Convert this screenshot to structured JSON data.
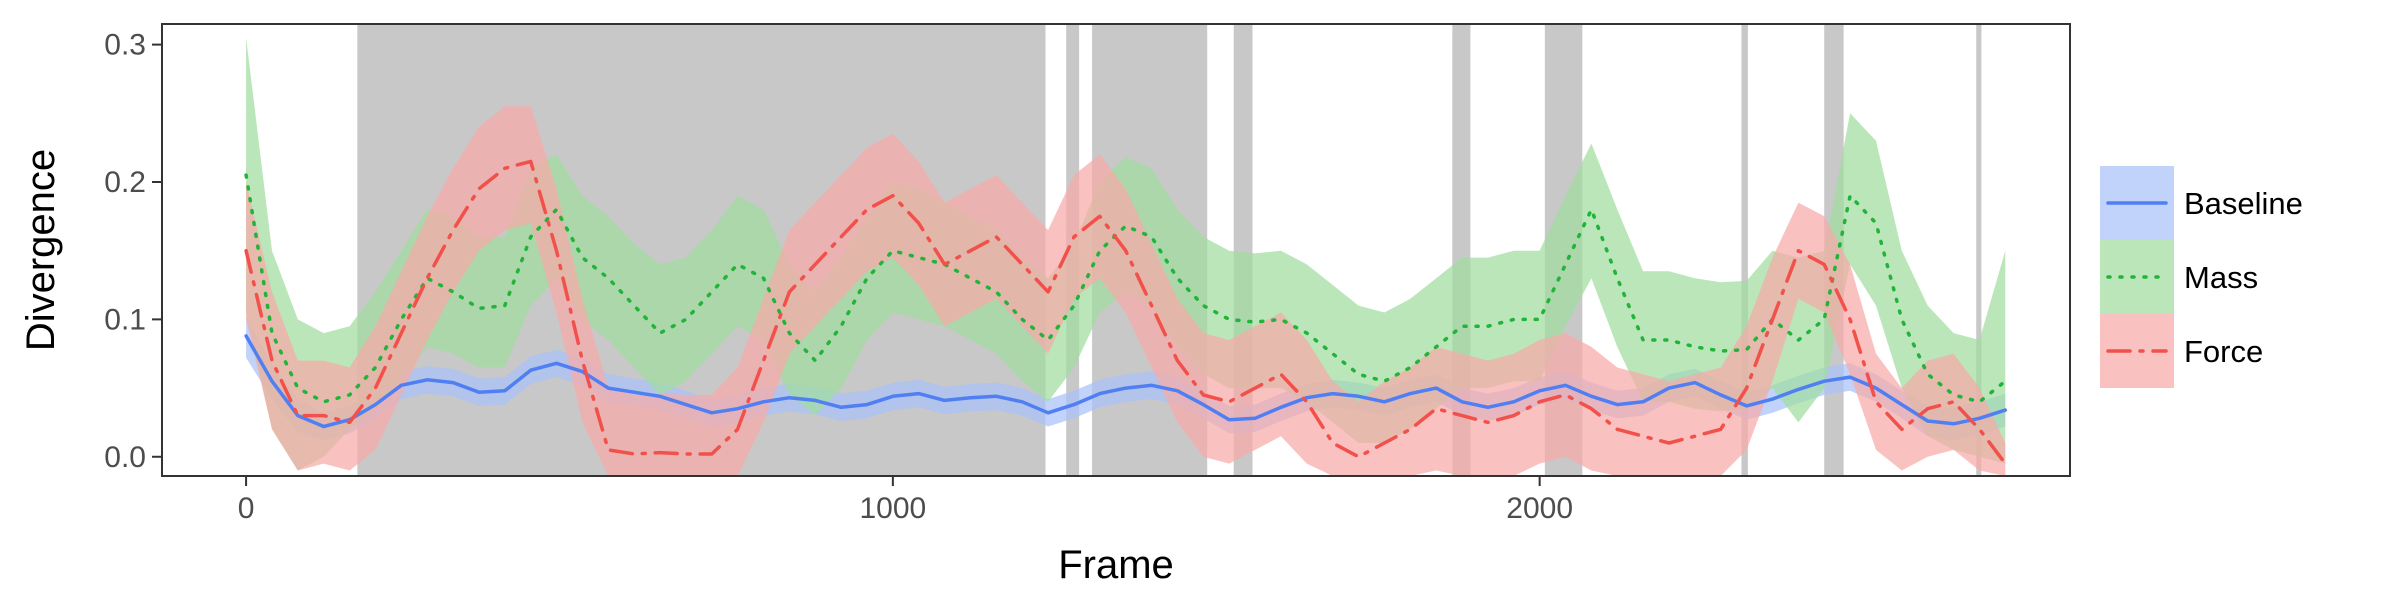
{
  "chart_data": {
    "type": "line",
    "xlabel": "Frame",
    "ylabel": "Divergence",
    "xlim": [
      -130,
      2820
    ],
    "ylim": [
      -0.014,
      0.315
    ],
    "x_ticks": [
      0,
      1000,
      2000
    ],
    "x_tick_labels": [
      "0",
      "1000",
      "2000"
    ],
    "y_ticks": [
      0.0,
      0.1,
      0.2,
      0.3
    ],
    "y_tick_labels": [
      "0.0",
      "0.1",
      "0.2",
      "0.3"
    ],
    "grid": false,
    "legend_position": "right",
    "shaded_regions": [
      [
        172,
        1236
      ],
      [
        1268,
        1288
      ],
      [
        1308,
        1486
      ],
      [
        1527,
        1556
      ],
      [
        1865,
        1893
      ],
      [
        2008,
        2066
      ],
      [
        2312,
        2322
      ],
      [
        2440,
        2470
      ],
      [
        2675,
        2683
      ]
    ],
    "series": [
      {
        "name": "Baseline",
        "color": "#4f7ff2",
        "fill": "#a9c2f8",
        "line_style": "solid",
        "x": [
          0,
          40,
          80,
          120,
          160,
          200,
          240,
          280,
          320,
          360,
          400,
          440,
          480,
          520,
          560,
          600,
          640,
          680,
          720,
          760,
          800,
          840,
          880,
          920,
          960,
          1000,
          1040,
          1080,
          1120,
          1160,
          1200,
          1240,
          1280,
          1320,
          1360,
          1400,
          1440,
          1480,
          1520,
          1560,
          1600,
          1640,
          1680,
          1720,
          1760,
          1800,
          1840,
          1880,
          1920,
          1960,
          2000,
          2040,
          2080,
          2120,
          2160,
          2200,
          2240,
          2280,
          2320,
          2360,
          2400,
          2440,
          2480,
          2520,
          2560,
          2600,
          2640,
          2680,
          2720
        ],
        "y": [
          0.088,
          0.055,
          0.03,
          0.022,
          0.027,
          0.038,
          0.052,
          0.056,
          0.054,
          0.047,
          0.048,
          0.063,
          0.068,
          0.062,
          0.05,
          0.047,
          0.044,
          0.038,
          0.032,
          0.035,
          0.04,
          0.043,
          0.041,
          0.036,
          0.038,
          0.044,
          0.046,
          0.041,
          0.043,
          0.044,
          0.04,
          0.032,
          0.038,
          0.046,
          0.05,
          0.052,
          0.048,
          0.038,
          0.027,
          0.028,
          0.036,
          0.043,
          0.046,
          0.044,
          0.04,
          0.046,
          0.05,
          0.04,
          0.036,
          0.04,
          0.048,
          0.052,
          0.044,
          0.038,
          0.04,
          0.05,
          0.054,
          0.045,
          0.037,
          0.042,
          0.049,
          0.055,
          0.058,
          0.05,
          0.038,
          0.026,
          0.024,
          0.028,
          0.034
        ],
        "lower": [
          0.072,
          0.042,
          0.018,
          0.012,
          0.017,
          0.028,
          0.042,
          0.046,
          0.044,
          0.037,
          0.038,
          0.053,
          0.058,
          0.052,
          0.04,
          0.037,
          0.034,
          0.028,
          0.022,
          0.025,
          0.03,
          0.033,
          0.031,
          0.026,
          0.028,
          0.034,
          0.036,
          0.031,
          0.033,
          0.034,
          0.03,
          0.022,
          0.028,
          0.036,
          0.04,
          0.042,
          0.038,
          0.028,
          0.017,
          0.018,
          0.026,
          0.033,
          0.036,
          0.034,
          0.03,
          0.036,
          0.04,
          0.03,
          0.026,
          0.03,
          0.038,
          0.042,
          0.034,
          0.028,
          0.03,
          0.04,
          0.044,
          0.035,
          0.027,
          0.032,
          0.039,
          0.045,
          0.048,
          0.04,
          0.028,
          0.015,
          0.012,
          0.016,
          0.022
        ],
        "upper": [
          0.102,
          0.067,
          0.042,
          0.032,
          0.037,
          0.048,
          0.062,
          0.066,
          0.064,
          0.057,
          0.058,
          0.073,
          0.078,
          0.072,
          0.06,
          0.057,
          0.054,
          0.048,
          0.042,
          0.045,
          0.05,
          0.053,
          0.051,
          0.046,
          0.048,
          0.054,
          0.056,
          0.051,
          0.053,
          0.054,
          0.05,
          0.042,
          0.048,
          0.056,
          0.06,
          0.062,
          0.058,
          0.048,
          0.037,
          0.038,
          0.046,
          0.053,
          0.056,
          0.054,
          0.05,
          0.056,
          0.06,
          0.05,
          0.046,
          0.05,
          0.058,
          0.062,
          0.054,
          0.048,
          0.05,
          0.06,
          0.064,
          0.055,
          0.047,
          0.052,
          0.059,
          0.065,
          0.068,
          0.06,
          0.048,
          0.037,
          0.036,
          0.04,
          0.046
        ]
      },
      {
        "name": "Mass",
        "color": "#22b33a",
        "fill": "#9fdc9f",
        "line_style": "dotted",
        "x": [
          0,
          40,
          80,
          120,
          160,
          200,
          240,
          280,
          320,
          360,
          400,
          440,
          480,
          520,
          560,
          600,
          640,
          680,
          720,
          760,
          800,
          840,
          880,
          920,
          960,
          1000,
          1040,
          1080,
          1120,
          1160,
          1200,
          1240,
          1280,
          1320,
          1360,
          1400,
          1440,
          1480,
          1520,
          1560,
          1600,
          1640,
          1680,
          1720,
          1760,
          1800,
          1840,
          1880,
          1920,
          1960,
          2000,
          2040,
          2080,
          2120,
          2160,
          2200,
          2240,
          2280,
          2320,
          2360,
          2400,
          2440,
          2480,
          2520,
          2560,
          2600,
          2640,
          2680,
          2720
        ],
        "y": [
          0.205,
          0.09,
          0.05,
          0.04,
          0.045,
          0.065,
          0.1,
          0.13,
          0.12,
          0.108,
          0.11,
          0.16,
          0.18,
          0.145,
          0.13,
          0.11,
          0.09,
          0.1,
          0.12,
          0.14,
          0.13,
          0.09,
          0.07,
          0.095,
          0.13,
          0.15,
          0.145,
          0.14,
          0.13,
          0.12,
          0.1,
          0.085,
          0.11,
          0.15,
          0.168,
          0.16,
          0.13,
          0.11,
          0.1,
          0.098,
          0.1,
          0.09,
          0.075,
          0.06,
          0.055,
          0.065,
          0.08,
          0.095,
          0.095,
          0.1,
          0.1,
          0.14,
          0.18,
          0.13,
          0.085,
          0.085,
          0.08,
          0.077,
          0.078,
          0.1,
          0.085,
          0.1,
          0.19,
          0.17,
          0.1,
          0.06,
          0.045,
          0.04,
          0.055
        ],
        "lower": [
          0.105,
          0.02,
          -0.01,
          0.0,
          0.02,
          0.035,
          0.055,
          0.08,
          0.075,
          0.065,
          0.065,
          0.11,
          0.13,
          0.1,
          0.085,
          0.065,
          0.045,
          0.055,
          0.075,
          0.095,
          0.085,
          0.045,
          0.03,
          0.05,
          0.085,
          0.105,
          0.1,
          0.095,
          0.085,
          0.075,
          0.055,
          0.04,
          0.065,
          0.105,
          0.12,
          0.11,
          0.08,
          0.06,
          0.05,
          0.05,
          0.05,
          0.04,
          0.025,
          0.01,
          0.01,
          0.02,
          0.035,
          0.05,
          0.05,
          0.055,
          0.055,
          0.095,
          0.13,
          0.08,
          0.04,
          0.04,
          0.035,
          0.033,
          0.035,
          0.05,
          0.025,
          0.05,
          0.14,
          0.11,
          0.05,
          0.015,
          0.005,
          0.0,
          -0.005
        ],
        "upper": [
          0.305,
          0.15,
          0.1,
          0.09,
          0.095,
          0.12,
          0.15,
          0.18,
          0.175,
          0.16,
          0.16,
          0.21,
          0.22,
          0.19,
          0.175,
          0.155,
          0.14,
          0.145,
          0.165,
          0.19,
          0.18,
          0.14,
          0.12,
          0.145,
          0.175,
          0.2,
          0.195,
          0.185,
          0.175,
          0.165,
          0.145,
          0.13,
          0.155,
          0.2,
          0.218,
          0.21,
          0.18,
          0.16,
          0.15,
          0.148,
          0.15,
          0.14,
          0.125,
          0.11,
          0.105,
          0.115,
          0.13,
          0.145,
          0.145,
          0.15,
          0.15,
          0.19,
          0.228,
          0.18,
          0.135,
          0.135,
          0.13,
          0.127,
          0.128,
          0.15,
          0.145,
          0.15,
          0.25,
          0.23,
          0.15,
          0.11,
          0.09,
          0.085,
          0.15
        ]
      },
      {
        "name": "Force",
        "color": "#f2504b",
        "fill": "#f6aaa8",
        "line_style": "dashdot",
        "x": [
          0,
          40,
          80,
          120,
          160,
          200,
          240,
          280,
          320,
          360,
          400,
          440,
          480,
          520,
          560,
          600,
          640,
          680,
          720,
          760,
          800,
          840,
          880,
          920,
          960,
          1000,
          1040,
          1080,
          1120,
          1160,
          1200,
          1240,
          1280,
          1320,
          1360,
          1400,
          1440,
          1480,
          1520,
          1560,
          1600,
          1640,
          1680,
          1720,
          1760,
          1800,
          1840,
          1880,
          1920,
          1960,
          2000,
          2040,
          2080,
          2120,
          2160,
          2200,
          2240,
          2280,
          2320,
          2360,
          2400,
          2440,
          2480,
          2520,
          2560,
          2600,
          2640,
          2680,
          2720
        ],
        "y": [
          0.15,
          0.07,
          0.03,
          0.03,
          0.025,
          0.05,
          0.09,
          0.13,
          0.165,
          0.195,
          0.21,
          0.215,
          0.15,
          0.07,
          0.005,
          0.002,
          0.003,
          0.002,
          0.002,
          0.02,
          0.07,
          0.12,
          0.14,
          0.16,
          0.18,
          0.19,
          0.17,
          0.14,
          0.15,
          0.16,
          0.14,
          0.12,
          0.16,
          0.175,
          0.15,
          0.11,
          0.07,
          0.045,
          0.04,
          0.05,
          0.06,
          0.04,
          0.01,
          0.0,
          0.01,
          0.02,
          0.035,
          0.03,
          0.025,
          0.03,
          0.04,
          0.045,
          0.035,
          0.02,
          0.015,
          0.01,
          0.015,
          0.02,
          0.05,
          0.1,
          0.15,
          0.14,
          0.1,
          0.04,
          0.02,
          0.035,
          0.04,
          0.02,
          -0.005
        ],
        "lower": [
          0.1,
          0.02,
          -0.01,
          -0.005,
          -0.01,
          0.005,
          0.045,
          0.085,
          0.12,
          0.15,
          0.165,
          0.17,
          0.105,
          0.025,
          -0.04,
          -0.04,
          -0.04,
          -0.04,
          -0.04,
          -0.025,
          0.025,
          0.075,
          0.095,
          0.115,
          0.135,
          0.145,
          0.125,
          0.095,
          0.105,
          0.115,
          0.095,
          0.075,
          0.115,
          0.13,
          0.105,
          0.065,
          0.025,
          0.0,
          -0.005,
          0.005,
          0.015,
          -0.005,
          -0.035,
          -0.04,
          -0.035,
          -0.025,
          -0.01,
          -0.015,
          -0.02,
          -0.015,
          -0.005,
          0.0,
          -0.01,
          -0.025,
          -0.03,
          -0.035,
          -0.03,
          -0.025,
          0.005,
          0.055,
          0.115,
          0.105,
          0.06,
          0.005,
          -0.01,
          0.0,
          0.005,
          -0.01,
          -0.02
        ],
        "upper": [
          0.2,
          0.12,
          0.07,
          0.07,
          0.065,
          0.095,
          0.135,
          0.175,
          0.21,
          0.24,
          0.255,
          0.255,
          0.195,
          0.115,
          0.05,
          0.045,
          0.046,
          0.045,
          0.045,
          0.065,
          0.115,
          0.165,
          0.185,
          0.205,
          0.225,
          0.235,
          0.215,
          0.185,
          0.195,
          0.205,
          0.185,
          0.165,
          0.205,
          0.22,
          0.195,
          0.155,
          0.115,
          0.09,
          0.085,
          0.095,
          0.105,
          0.085,
          0.055,
          0.04,
          0.055,
          0.065,
          0.08,
          0.075,
          0.07,
          0.075,
          0.085,
          0.09,
          0.08,
          0.065,
          0.06,
          0.055,
          0.06,
          0.065,
          0.095,
          0.145,
          0.185,
          0.175,
          0.14,
          0.075,
          0.05,
          0.07,
          0.075,
          0.05,
          0.01
        ]
      }
    ]
  }
}
